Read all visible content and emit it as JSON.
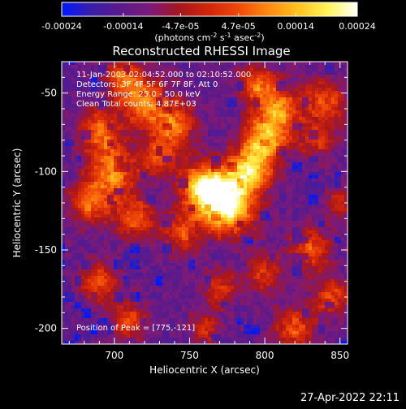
{
  "colorbar": {
    "tick_labels": [
      "-0.00024",
      "-0.00014",
      "-4.7e-05",
      "4.7e-05",
      "0.00014",
      "0.00024"
    ],
    "tick_values": [
      -0.00024,
      -0.00014,
      -4.7e-05,
      4.7e-05,
      0.00014,
      0.00024
    ],
    "range": [
      -0.00024,
      0.00024
    ],
    "units_prefix": "(photons cm",
    "units_exp1": "-2",
    "units_mid": " s",
    "units_exp2": "-1",
    "units_mid2": " asec",
    "units_exp3": "-2",
    "units_suffix": ")",
    "colors": [
      "#0018ff",
      "#3a1ea8",
      "#5b1a8a",
      "#7d1a7a",
      "#a8161a",
      "#d3260a",
      "#f04a08",
      "#ff8a10",
      "#ffc21e",
      "#fff45a",
      "#ffffff"
    ]
  },
  "chart_data": {
    "type": "heatmap",
    "title": "Reconstructed RHESSI Image",
    "xlabel": "Heliocentric X (arcsec)",
    "ylabel": "Heliocentric Y (arcsec)",
    "xlim": [
      665,
      855
    ],
    "ylim": [
      -210,
      -30
    ],
    "xticks": [
      700,
      750,
      800,
      850
    ],
    "yticks": [
      -50,
      -100,
      -150,
      -200
    ],
    "annotations": [
      "11-Jan-2003 02:04:52.000 to 02:10:52.000",
      "Detectors: 3F 4F 5F 6F 7F 8F, Att 0",
      "Energy Range: 25.0 - 50.0 keV",
      "Clean    Total counts: 4.87E+03"
    ],
    "peak_label": "Position of Peak = [775,-121]",
    "peak": [
      775,
      -121
    ]
  },
  "timestamp": "27-Apr-2022 22:11"
}
